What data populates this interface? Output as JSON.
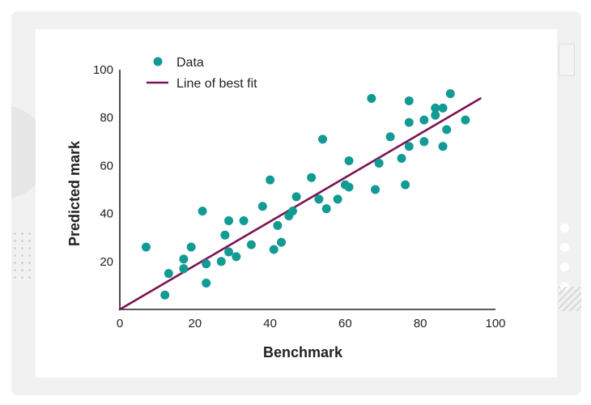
{
  "colors": {
    "point": "#129a94",
    "fit_line": "#7a1352",
    "axis": "#222222",
    "frame_bg": "#f1f1f1",
    "card_bg": "#ffffff"
  },
  "chart_data": {
    "type": "scatter",
    "title": "",
    "xlabel": "Benchmark",
    "ylabel": "Predicted mark",
    "xlim": [
      0,
      100
    ],
    "ylim": [
      0,
      100
    ],
    "x_ticks": [
      "0",
      "20",
      "40",
      "60",
      "80",
      "100"
    ],
    "y_ticks": [
      "20",
      "40",
      "60",
      "80",
      "100"
    ],
    "grid": false,
    "legend_position": "top-left",
    "legend": [
      {
        "key": "data",
        "label": "Data",
        "marker": "dot"
      },
      {
        "key": "fit",
        "label": "Line of best fit",
        "marker": "line"
      }
    ],
    "series": [
      {
        "name": "Data",
        "points": [
          [
            7,
            26
          ],
          [
            12,
            6
          ],
          [
            13,
            15
          ],
          [
            17,
            17
          ],
          [
            17,
            21
          ],
          [
            19,
            26
          ],
          [
            22,
            41
          ],
          [
            23,
            11
          ],
          [
            23,
            19
          ],
          [
            27,
            20
          ],
          [
            28,
            31
          ],
          [
            29,
            24
          ],
          [
            29,
            37
          ],
          [
            31,
            22
          ],
          [
            33,
            37
          ],
          [
            35,
            27
          ],
          [
            38,
            43
          ],
          [
            40,
            54
          ],
          [
            41,
            25
          ],
          [
            42,
            35
          ],
          [
            43,
            28
          ],
          [
            45,
            39
          ],
          [
            46,
            41
          ],
          [
            47,
            47
          ],
          [
            51,
            55
          ],
          [
            53,
            46
          ],
          [
            54,
            71
          ],
          [
            55,
            42
          ],
          [
            58,
            46
          ],
          [
            60,
            52
          ],
          [
            61,
            51
          ],
          [
            61,
            62
          ],
          [
            67,
            88
          ],
          [
            68,
            50
          ],
          [
            69,
            61
          ],
          [
            72,
            72
          ],
          [
            75,
            63
          ],
          [
            76,
            52
          ],
          [
            77,
            68
          ],
          [
            77,
            78
          ],
          [
            77,
            87
          ],
          [
            81,
            70
          ],
          [
            81,
            79
          ],
          [
            84,
            81
          ],
          [
            84,
            84
          ],
          [
            86,
            84
          ],
          [
            86,
            68
          ],
          [
            87,
            75
          ],
          [
            88,
            90
          ],
          [
            92,
            79
          ]
        ]
      },
      {
        "name": "Line of best fit",
        "line": [
          [
            0,
            0
          ],
          [
            96,
            88
          ]
        ]
      }
    ]
  }
}
